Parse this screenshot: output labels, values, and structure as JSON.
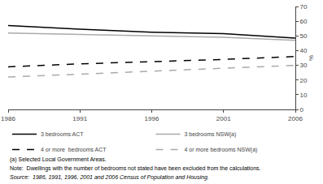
{
  "chart_data": {
    "type": "line",
    "x": [
      1986,
      1991,
      1996,
      2001,
      2006
    ],
    "xlim": [
      1986,
      2006
    ],
    "xticks": [
      1986,
      1991,
      1996,
      2001,
      2006
    ],
    "ylim": [
      0,
      70
    ],
    "yticks": [
      0,
      10,
      20,
      30,
      40,
      50,
      60,
      70
    ],
    "ylabel": "%",
    "series": [
      {
        "name": "3 bedrooms ACT",
        "color": "#000000",
        "line_style": "solid",
        "values": [
          57,
          54.5,
          52.5,
          51.5,
          48.5
        ]
      },
      {
        "name": "3 bedrooms NSW(a)",
        "color": "#aaaaaa",
        "line_style": "solid",
        "values": [
          52,
          51,
          50,
          49,
          47
        ]
      },
      {
        "name": "4 or more  bedrooms ACT",
        "color": "#000000",
        "line_style": "dashed",
        "values": [
          29,
          31,
          32.5,
          34,
          36
        ]
      },
      {
        "name": "4 or more bedrooms NSW(a)",
        "color": "#aaaaaa",
        "line_style": "dashed",
        "values": [
          22,
          24,
          26,
          28,
          30
        ]
      }
    ],
    "annotations": [
      "(a) Selected Local Government Areas.",
      "Note:  Dwellings with the number of bedrooms not stated have been excluded from the calculations.",
      "Source:  1986, 1991, 1996, 2001 and 2006 Census of Population and Housing."
    ],
    "grid": false,
    "legend": "bottom"
  }
}
